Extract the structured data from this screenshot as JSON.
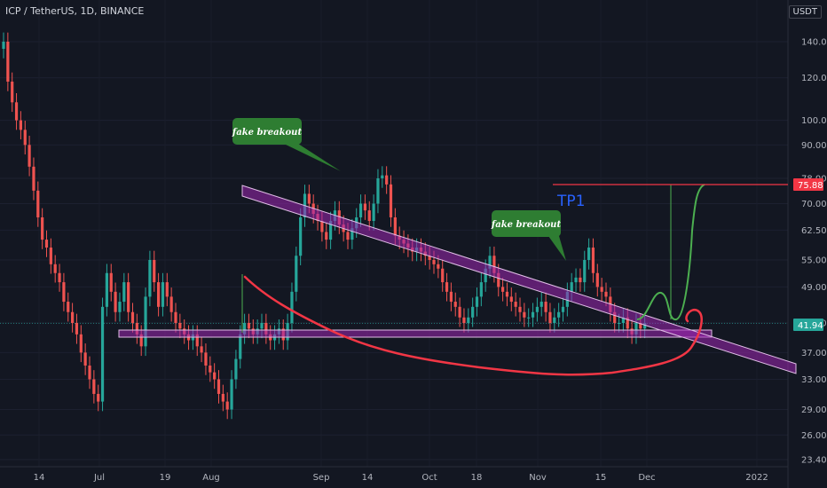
{
  "header": {
    "title": "ICP / TetherUS, 1D, BINANCE",
    "unit": "USDT"
  },
  "colors": {
    "bg": "#131722",
    "up": "#26a69a",
    "down": "#ef5350",
    "channel": "#9c27b0",
    "annotation_green": "#2e7d32",
    "tp_line": "#f23645",
    "tp_text": "#2962ff",
    "projection": "#4caf50",
    "curve": "#f23645"
  },
  "chart_data": {
    "type": "candlestick",
    "y_scale": "log",
    "y_ticks": [
      "140.00",
      "120.00",
      "100.00",
      "90.00",
      "78.00",
      "70.00",
      "62.50",
      "55.00",
      "49.00",
      "42.00",
      "37.00",
      "33.00",
      "29.00",
      "26.00",
      "23.40"
    ],
    "x_ticks": [
      "14",
      "Jul",
      "19",
      "Aug",
      "Sep",
      "14",
      "Oct",
      "18",
      "Nov",
      "15",
      "Dec",
      "2022"
    ],
    "current_price": "41.94",
    "tp_price": "75.88",
    "annotations": {
      "fake_breakout_1": "fake breakout",
      "fake_breakout_2": "fake breakout",
      "tp_label": "TP1"
    },
    "candles_close": [
      140,
      118,
      108,
      100,
      96,
      90,
      82,
      74,
      66,
      60,
      58,
      54,
      52,
      50,
      46,
      44,
      42,
      40,
      37,
      35,
      33,
      31,
      30,
      45,
      52,
      48,
      44,
      46,
      50,
      44,
      42,
      40,
      38,
      47,
      55,
      50,
      45,
      50,
      47,
      44,
      42,
      41,
      40,
      39,
      40,
      38,
      37,
      35,
      34,
      33,
      31,
      30,
      29,
      33,
      36,
      40,
      42,
      41,
      40,
      41,
      42,
      40,
      39,
      40,
      41,
      39,
      42,
      48,
      56,
      66,
      73,
      70,
      67,
      65,
      62,
      60,
      65,
      68,
      64,
      62,
      60,
      63,
      66,
      70,
      68,
      65,
      70,
      78,
      79,
      76,
      66,
      61,
      60,
      59,
      58,
      57,
      58,
      57,
      56,
      55,
      54,
      53,
      50,
      48,
      46,
      45,
      43,
      42,
      43,
      45,
      47,
      50,
      53,
      56,
      52,
      49,
      48,
      47,
      46,
      45,
      44,
      43,
      43,
      44,
      45,
      46,
      44,
      42,
      43,
      44,
      45,
      48,
      50,
      51,
      50,
      55,
      58,
      52,
      49,
      48,
      47,
      44,
      42,
      42,
      43,
      41,
      40,
      42,
      41,
      42
    ]
  }
}
